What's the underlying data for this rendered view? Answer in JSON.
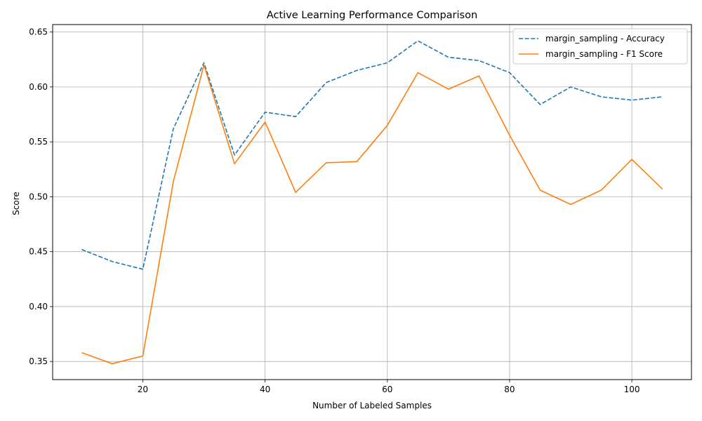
{
  "chart_data": {
    "type": "line",
    "title": "Active Learning Performance Comparison",
    "xlabel": "Number of Labeled Samples",
    "ylabel": "Score",
    "xlim": [
      5.25,
      109.75
    ],
    "ylim": [
      0.3335,
      0.6568
    ],
    "x_ticks": [
      20,
      40,
      60,
      80,
      100
    ],
    "y_ticks": [
      0.35,
      0.4,
      0.45,
      0.5,
      0.55,
      0.6,
      0.65
    ],
    "grid": true,
    "legend_position": "top-right",
    "x": [
      10,
      15,
      20,
      25,
      30,
      35,
      40,
      45,
      50,
      55,
      60,
      65,
      70,
      75,
      80,
      85,
      90,
      95,
      100,
      105
    ],
    "series": [
      {
        "name": "margin_sampling - Accuracy",
        "color": "#1f77b4",
        "style": "dashed",
        "values": [
          0.452,
          0.441,
          0.434,
          0.562,
          0.622,
          0.538,
          0.577,
          0.573,
          0.604,
          0.615,
          0.622,
          0.642,
          0.627,
          0.624,
          0.613,
          0.584,
          0.6,
          0.591,
          0.588,
          0.591
        ]
      },
      {
        "name": "margin_sampling - F1 Score",
        "color": "#ff7f0e",
        "style": "solid",
        "values": [
          0.358,
          0.348,
          0.355,
          0.514,
          0.62,
          0.53,
          0.568,
          0.504,
          0.531,
          0.532,
          0.565,
          0.613,
          0.598,
          0.61,
          0.556,
          0.506,
          0.493,
          0.506,
          0.534,
          0.507
        ]
      }
    ]
  }
}
